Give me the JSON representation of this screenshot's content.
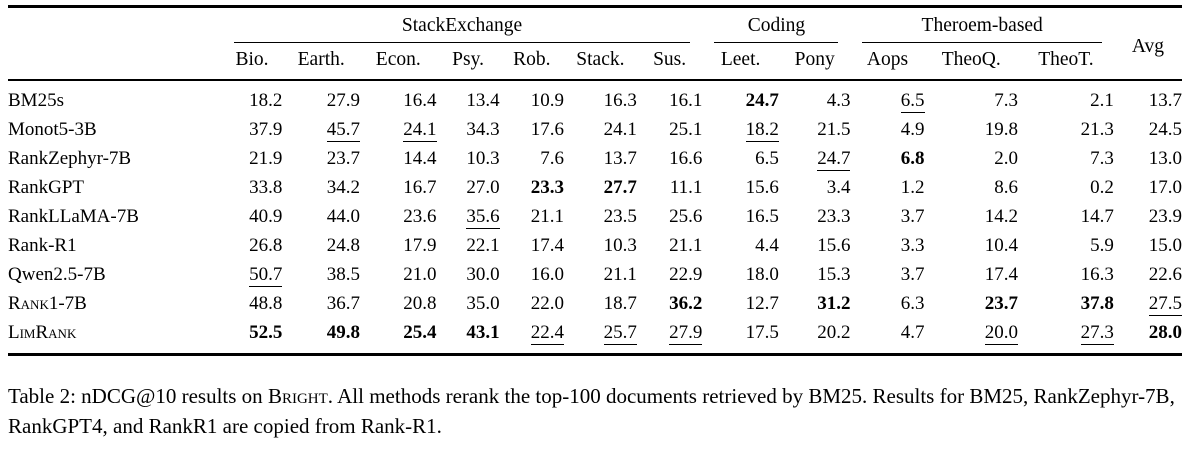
{
  "table": {
    "groups": [
      {
        "label": "StackExchange",
        "span": 7
      },
      {
        "label": "Coding",
        "span": 2
      },
      {
        "label": "Theroem-based",
        "span": 3
      }
    ],
    "avg_label": "Avg",
    "columns": [
      "Bio.",
      "Earth.",
      "Econ.",
      "Psy.",
      "Rob.",
      "Stack.",
      "Sus.",
      "Leet.",
      "Pony",
      "Aops",
      "TheoQ.",
      "TheoT."
    ],
    "rows": [
      {
        "method": "BM25s",
        "smallcaps": false,
        "values": [
          "18.2",
          "27.9",
          "16.4",
          "13.4",
          "10.9",
          "16.3",
          "16.1",
          "24.7",
          "4.3",
          "6.5",
          "7.3",
          "2.1",
          "13.7"
        ],
        "bold": [
          7
        ],
        "underline": [
          9
        ]
      },
      {
        "method": "Monot5-3B",
        "smallcaps": false,
        "values": [
          "37.9",
          "45.7",
          "24.1",
          "34.3",
          "17.6",
          "24.1",
          "25.1",
          "18.2",
          "21.5",
          "4.9",
          "19.8",
          "21.3",
          "24.5"
        ],
        "bold": [],
        "underline": [
          1,
          2,
          7
        ]
      },
      {
        "method": "RankZephyr-7B",
        "smallcaps": false,
        "values": [
          "21.9",
          "23.7",
          "14.4",
          "10.3",
          "7.6",
          "13.7",
          "16.6",
          "6.5",
          "24.7",
          "6.8",
          "2.0",
          "7.3",
          "13.0"
        ],
        "bold": [
          9
        ],
        "underline": [
          8
        ]
      },
      {
        "method": "RankGPT",
        "smallcaps": false,
        "values": [
          "33.8",
          "34.2",
          "16.7",
          "27.0",
          "23.3",
          "27.7",
          "11.1",
          "15.6",
          "3.4",
          "1.2",
          "8.6",
          "0.2",
          "17.0"
        ],
        "bold": [
          4,
          5
        ],
        "underline": []
      },
      {
        "method": "RankLLaMA-7B",
        "smallcaps": false,
        "values": [
          "40.9",
          "44.0",
          "23.6",
          "35.6",
          "21.1",
          "23.5",
          "25.6",
          "16.5",
          "23.3",
          "3.7",
          "14.2",
          "14.7",
          "23.9"
        ],
        "bold": [],
        "underline": [
          3
        ]
      },
      {
        "method": "Rank-R1",
        "smallcaps": false,
        "values": [
          "26.8",
          "24.8",
          "17.9",
          "22.1",
          "17.4",
          "10.3",
          "21.1",
          "4.4",
          "15.6",
          "3.3",
          "10.4",
          "5.9",
          "15.0"
        ],
        "bold": [],
        "underline": []
      },
      {
        "method": "Qwen2.5-7B",
        "smallcaps": false,
        "values": [
          "50.7",
          "38.5",
          "21.0",
          "30.0",
          "16.0",
          "21.1",
          "22.9",
          "18.0",
          "15.3",
          "3.7",
          "17.4",
          "16.3",
          "22.6"
        ],
        "bold": [],
        "underline": [
          0
        ]
      },
      {
        "method": "Rank1-7B",
        "smallcaps": true,
        "values": [
          "48.8",
          "36.7",
          "20.8",
          "35.0",
          "22.0",
          "18.7",
          "36.2",
          "12.7",
          "31.2",
          "6.3",
          "23.7",
          "37.8",
          "27.5"
        ],
        "bold": [
          6,
          8,
          10,
          11
        ],
        "underline": [
          12
        ]
      },
      {
        "method": "LimRank",
        "smallcaps": true,
        "values": [
          "52.5",
          "49.8",
          "25.4",
          "43.1",
          "22.4",
          "25.7",
          "27.9",
          "17.5",
          "20.2",
          "4.7",
          "20.0",
          "27.3",
          "28.0"
        ],
        "bold": [
          0,
          1,
          2,
          3,
          12
        ],
        "underline": [
          4,
          5,
          6,
          10,
          11
        ]
      }
    ]
  },
  "caption": {
    "prefix": "Table 2: nDCG@10 results on ",
    "benchmark": "Bright",
    "suffix": ". All methods rerank the top-100 documents retrieved by BM25. Results for BM25, RankZephyr-7B, RankGPT4, and RankR1 are copied from Rank-R1."
  }
}
